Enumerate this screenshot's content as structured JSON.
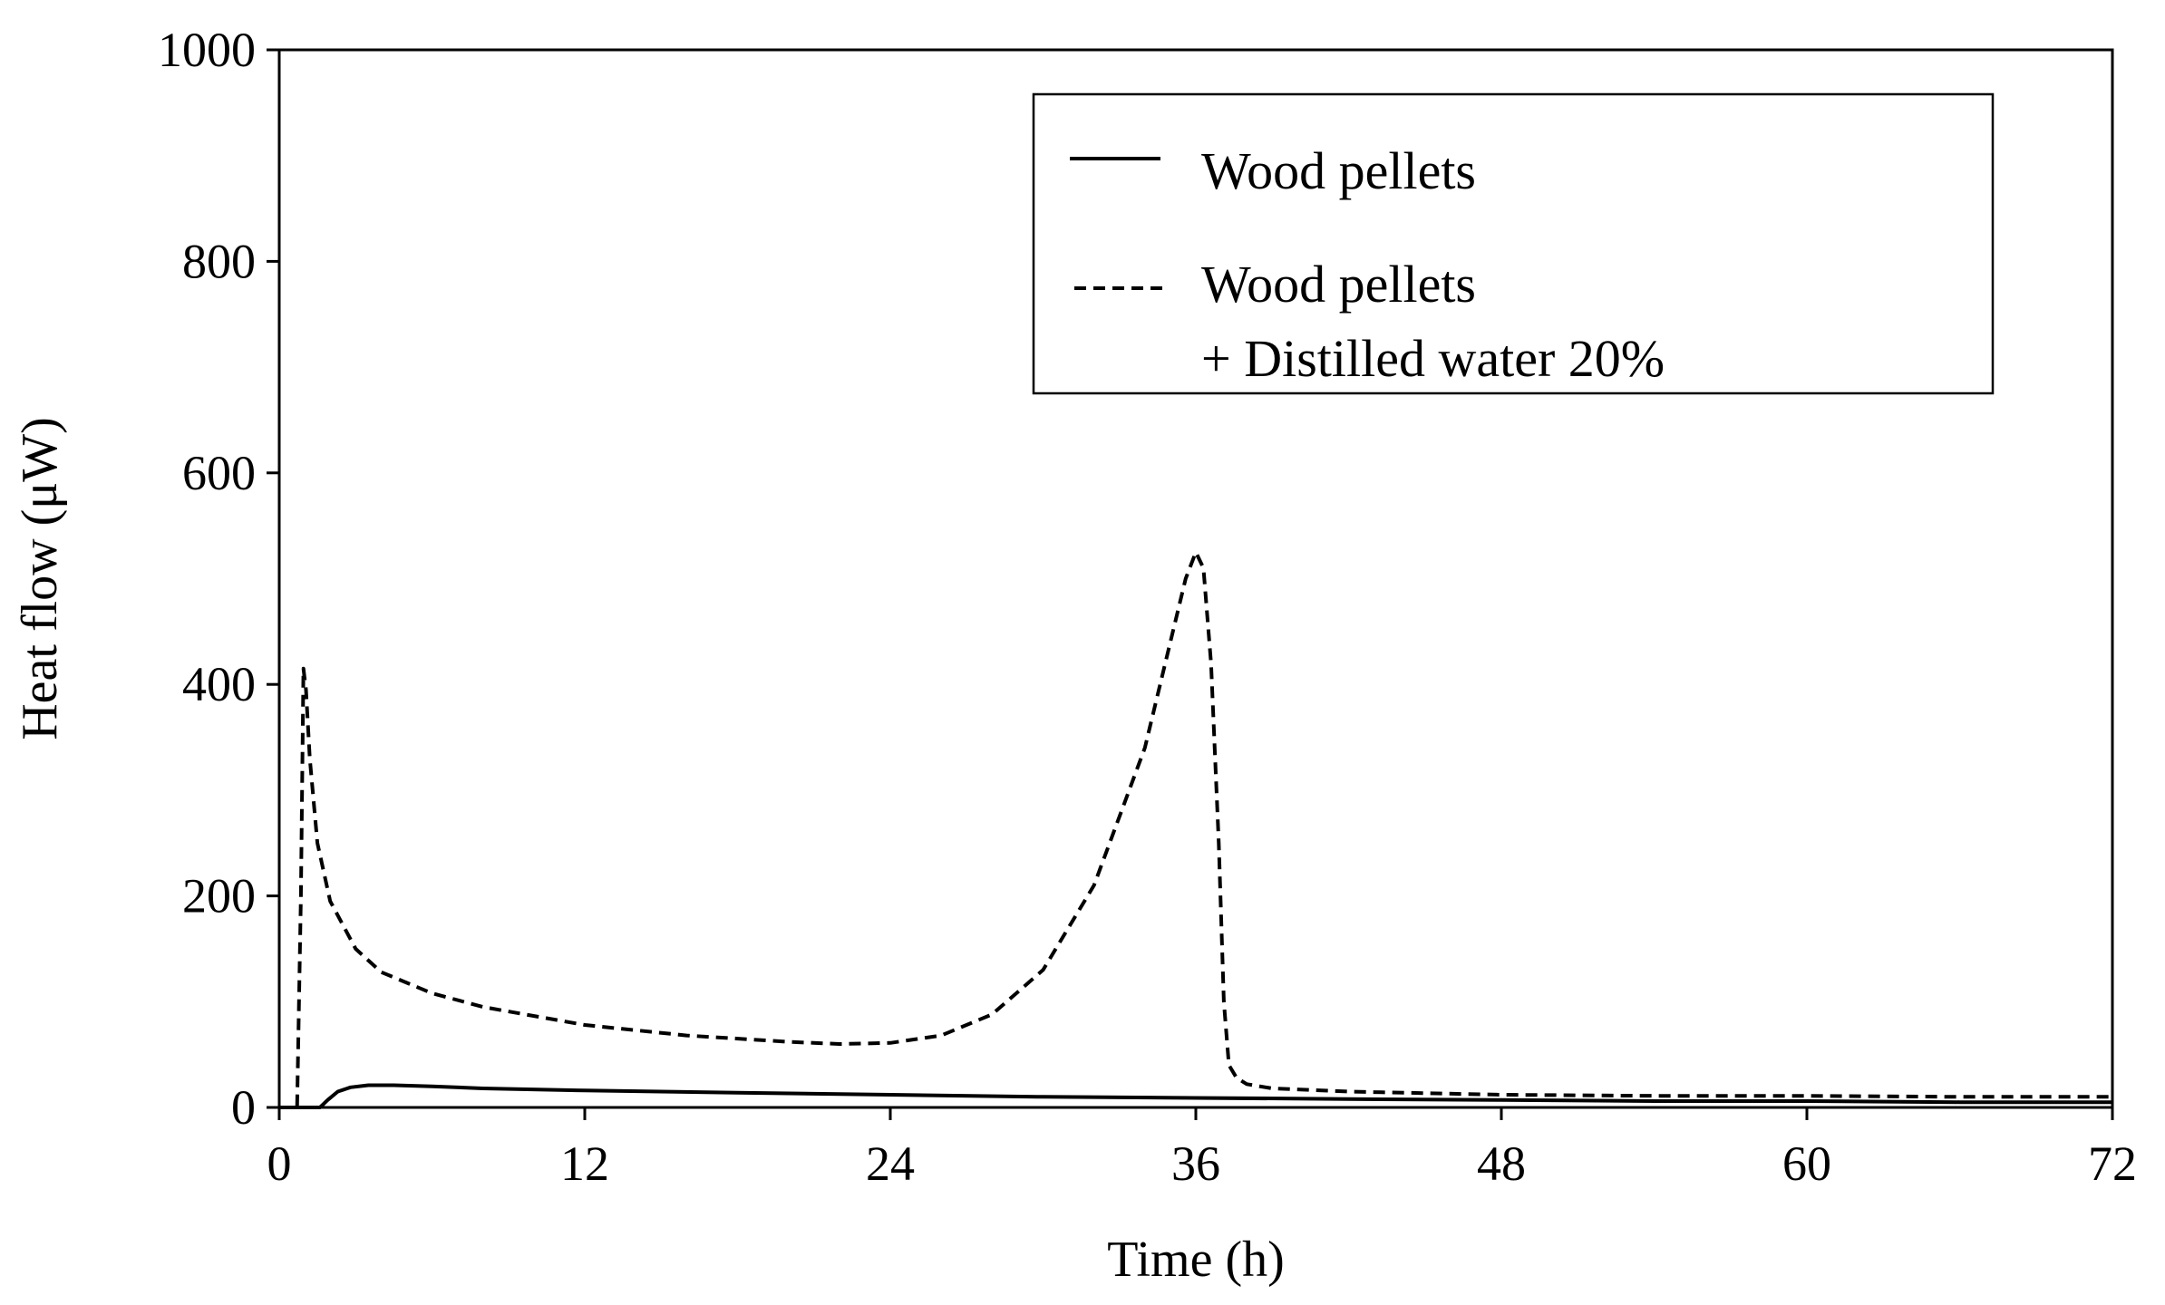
{
  "chart_data": {
    "type": "line",
    "title": "",
    "xlabel": "Time (h)",
    "ylabel": "Heat flow (μW)",
    "xlim": [
      0,
      72
    ],
    "ylim": [
      0,
      1000
    ],
    "xticks": [
      0,
      12,
      24,
      36,
      48,
      60,
      72
    ],
    "yticks": [
      0,
      200,
      400,
      600,
      800,
      1000
    ],
    "grid": false,
    "legend_position": "top-right",
    "series": [
      {
        "name": "Wood pellets",
        "style": "solid",
        "color": "#000000",
        "x": [
          0,
          1.6,
          1.9,
          2.3,
          2.8,
          3.5,
          4.5,
          6,
          8,
          12,
          18,
          24,
          30,
          36,
          42,
          48,
          54,
          60,
          66,
          72
        ],
        "y": [
          0,
          0,
          7,
          15,
          19,
          21,
          21,
          20,
          18,
          16,
          14,
          12,
          10,
          9,
          8,
          7,
          6,
          6,
          5,
          5
        ]
      },
      {
        "name": "Wood pellets + Distilled water 20%",
        "style": "dashed",
        "color": "#000000",
        "x": [
          0,
          0.5,
          0.7,
          0.85,
          0.95,
          1.05,
          1.2,
          1.5,
          2,
          3,
          4,
          6,
          8,
          12,
          16,
          20,
          22,
          24,
          26,
          28,
          30,
          32,
          34,
          35,
          35.6,
          36,
          36.3,
          36.6,
          36.9,
          37.1,
          37.3,
          37.6,
          38,
          39,
          42,
          48,
          54,
          60,
          66,
          72
        ],
        "y": [
          0,
          0,
          0,
          200,
          415,
          395,
          330,
          250,
          195,
          150,
          128,
          108,
          95,
          78,
          68,
          62,
          60,
          61,
          68,
          88,
          130,
          210,
          340,
          440,
          500,
          525,
          510,
          420,
          250,
          100,
          40,
          28,
          22,
          18,
          15,
          12,
          11,
          11,
          10,
          10
        ]
      }
    ]
  }
}
